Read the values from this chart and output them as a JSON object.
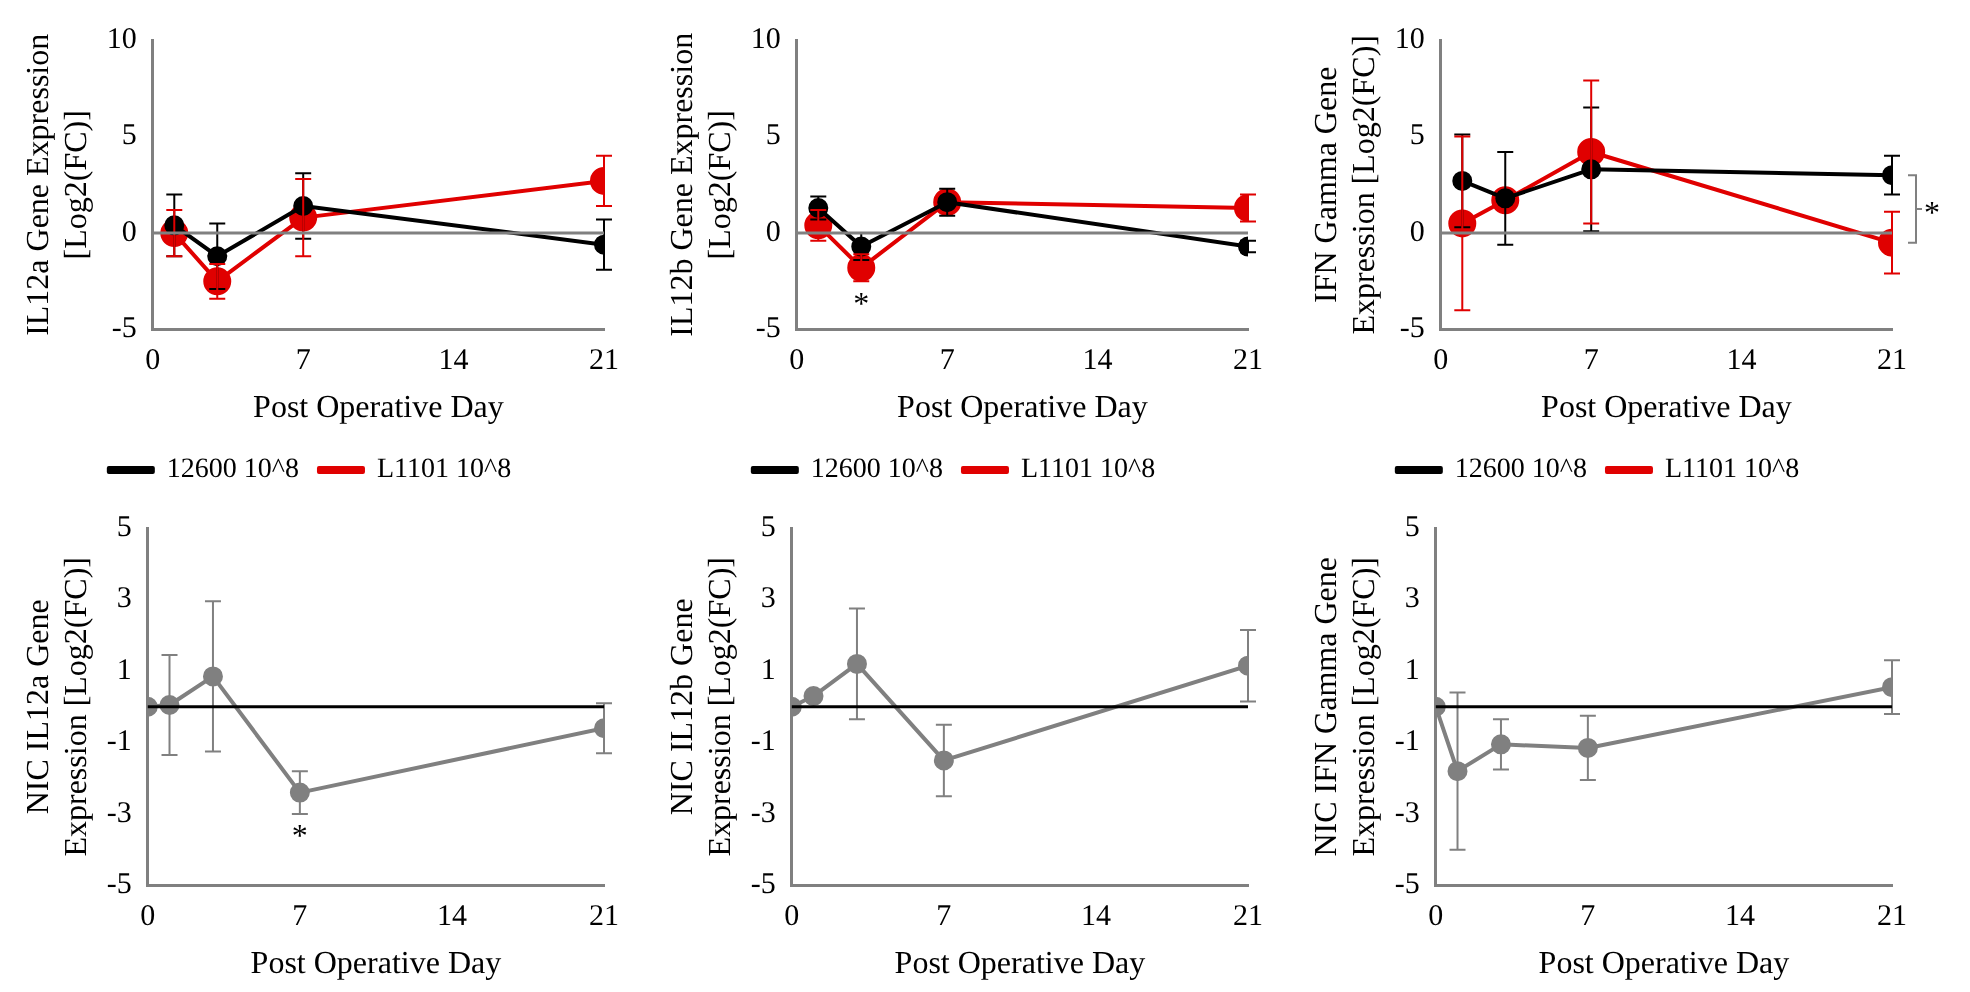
{
  "chart_data": [
    {
      "type": "line",
      "ylabel": "IL12a Gene Expression [Log2(FC)]",
      "xlabel": "Post Operative Day",
      "xlim": [
        0,
        21
      ],
      "xticks": [
        0,
        7,
        14,
        21
      ],
      "ylim": [
        -5,
        10
      ],
      "yticks": [
        -5,
        0,
        5,
        10
      ],
      "grid": false,
      "legend": "bottom",
      "marker": "circle",
      "line_style": "solid",
      "ref_lines": [
        {
          "axis": "y",
          "value": 0,
          "color": "#808080"
        }
      ],
      "series": [
        {
          "name": "12600 10^8",
          "color": "#000000",
          "x": [
            1,
            3,
            7,
            21
          ],
          "values": [
            0.4,
            -1.2,
            1.4,
            -0.6
          ],
          "errors": [
            1.6,
            1.7,
            1.7,
            1.3
          ]
        },
        {
          "name": "L1101 10^8",
          "color": "#e00000",
          "x": [
            1,
            3,
            7,
            21
          ],
          "values": [
            0,
            -2.5,
            0.8,
            2.7
          ],
          "errors": [
            1.2,
            0.9,
            2,
            1.3
          ]
        }
      ]
    },
    {
      "type": "line",
      "ylabel": "IL12b Gene Expression [Log2(FC)]",
      "xlabel": "Post Operative Day",
      "xlim": [
        0,
        21
      ],
      "xticks": [
        0,
        7,
        14,
        21
      ],
      "ylim": [
        -5,
        10
      ],
      "yticks": [
        -5,
        0,
        5,
        10
      ],
      "grid": false,
      "legend": "bottom",
      "marker": "circle",
      "line_style": "solid",
      "ref_lines": [
        {
          "axis": "y",
          "value": 0,
          "color": "#808080"
        }
      ],
      "series": [
        {
          "name": "12600 10^8",
          "color": "#000000",
          "x": [
            1,
            3,
            7,
            21
          ],
          "values": [
            1.3,
            -0.7,
            1.6,
            -0.7
          ],
          "errors": [
            0.6,
            0.7,
            0.7,
            0.3
          ]
        },
        {
          "name": "L1101 10^8",
          "color": "#e00000",
          "x": [
            1,
            3,
            7,
            21
          ],
          "values": [
            0.4,
            -1.8,
            1.6,
            1.3
          ],
          "errors": [
            0.8,
            0.7,
            null,
            0.7
          ]
        }
      ],
      "annotations": [
        {
          "text": "*",
          "x": 3,
          "y": -1.8
        }
      ]
    },
    {
      "type": "line",
      "ylabel": "IFN Gamma Gene Expression [Log2(FC)]",
      "xlabel": "Post Operative Day",
      "xlim": [
        0,
        21
      ],
      "xticks": [
        0,
        7,
        14,
        21
      ],
      "ylim": [
        -5,
        10
      ],
      "yticks": [
        -5,
        0,
        5,
        10
      ],
      "grid": false,
      "legend": "bottom",
      "marker": "circle",
      "line_style": "solid",
      "ref_lines": [
        {
          "axis": "y",
          "value": 0,
          "color": "#808080"
        }
      ],
      "series": [
        {
          "name": "12600 10^8",
          "color": "#000000",
          "x": [
            1,
            3,
            7,
            21
          ],
          "values": [
            2.7,
            1.8,
            3.3,
            3.0
          ],
          "errors": [
            2.4,
            2.4,
            3.2,
            1.0
          ]
        },
        {
          "name": "L1101 10^8",
          "color": "#e00000",
          "x": [
            1,
            3,
            7,
            21
          ],
          "values": [
            0.5,
            1.7,
            4.2,
            -0.5
          ],
          "errors": [
            4.5,
            null,
            3.7,
            1.6
          ]
        }
      ],
      "annotations": [
        {
          "text": "*",
          "x": 21,
          "y": -0.5
        }
      ]
    },
    {
      "type": "line",
      "ylabel": "NIC IL12a Gene Expression [Log2(FC)]",
      "xlabel": "Post Operative Day",
      "xlim": [
        0,
        21
      ],
      "xticks": [
        0,
        7,
        14,
        21
      ],
      "ylim": [
        -5,
        5
      ],
      "yticks": [
        -5,
        -3,
        -1,
        1,
        3,
        5
      ],
      "grid": false,
      "marker": "circle",
      "line_style": "solid",
      "ref_lines": [
        {
          "axis": "y",
          "value": 0,
          "color": "#000000"
        }
      ],
      "series": [
        {
          "color": "#808080",
          "x": [
            0,
            1,
            3,
            7,
            21
          ],
          "values": [
            0,
            0.05,
            0.85,
            -2.4,
            -0.6
          ],
          "errors": [
            null,
            1.4,
            2.1,
            0.6,
            0.7
          ]
        }
      ],
      "annotations": [
        {
          "text": "*",
          "x": 7,
          "y": -2.4
        }
      ]
    },
    {
      "type": "line",
      "ylabel": "NIC IL12b Gene Expression [Log2(FC)]",
      "xlabel": "Post Operative Day",
      "xlim": [
        0,
        21
      ],
      "xticks": [
        0,
        7,
        14,
        21
      ],
      "ylim": [
        -5,
        5
      ],
      "yticks": [
        -5,
        -3,
        -1,
        1,
        3,
        5
      ],
      "grid": false,
      "marker": "circle",
      "line_style": "solid",
      "ref_lines": [
        {
          "axis": "y",
          "value": 0,
          "color": "#000000"
        }
      ],
      "series": [
        {
          "color": "#808080",
          "x": [
            0,
            1,
            3,
            7,
            21
          ],
          "values": [
            0,
            0.3,
            1.2,
            -1.5,
            1.15
          ],
          "errors": [
            null,
            null,
            1.55,
            1.0,
            1.0
          ]
        }
      ]
    },
    {
      "type": "line",
      "ylabel": "NIC IFN Gamma Gene Expression [Log2(FC)]",
      "xlabel": "Post Operative Day",
      "xlim": [
        0,
        21
      ],
      "xticks": [
        0,
        7,
        14,
        21
      ],
      "ylim": [
        -5,
        5
      ],
      "yticks": [
        -5,
        -3,
        -1,
        1,
        3,
        5
      ],
      "grid": false,
      "marker": "circle",
      "line_style": "solid",
      "ref_lines": [
        {
          "axis": "y",
          "value": 0,
          "color": "#000000"
        }
      ],
      "series": [
        {
          "color": "#808080",
          "x": [
            0,
            1,
            3,
            7,
            21
          ],
          "values": [
            0,
            -1.8,
            -1.05,
            -1.15,
            0.55
          ],
          "errors": [
            null,
            2.2,
            0.7,
            0.9,
            0.75
          ]
        }
      ]
    }
  ]
}
